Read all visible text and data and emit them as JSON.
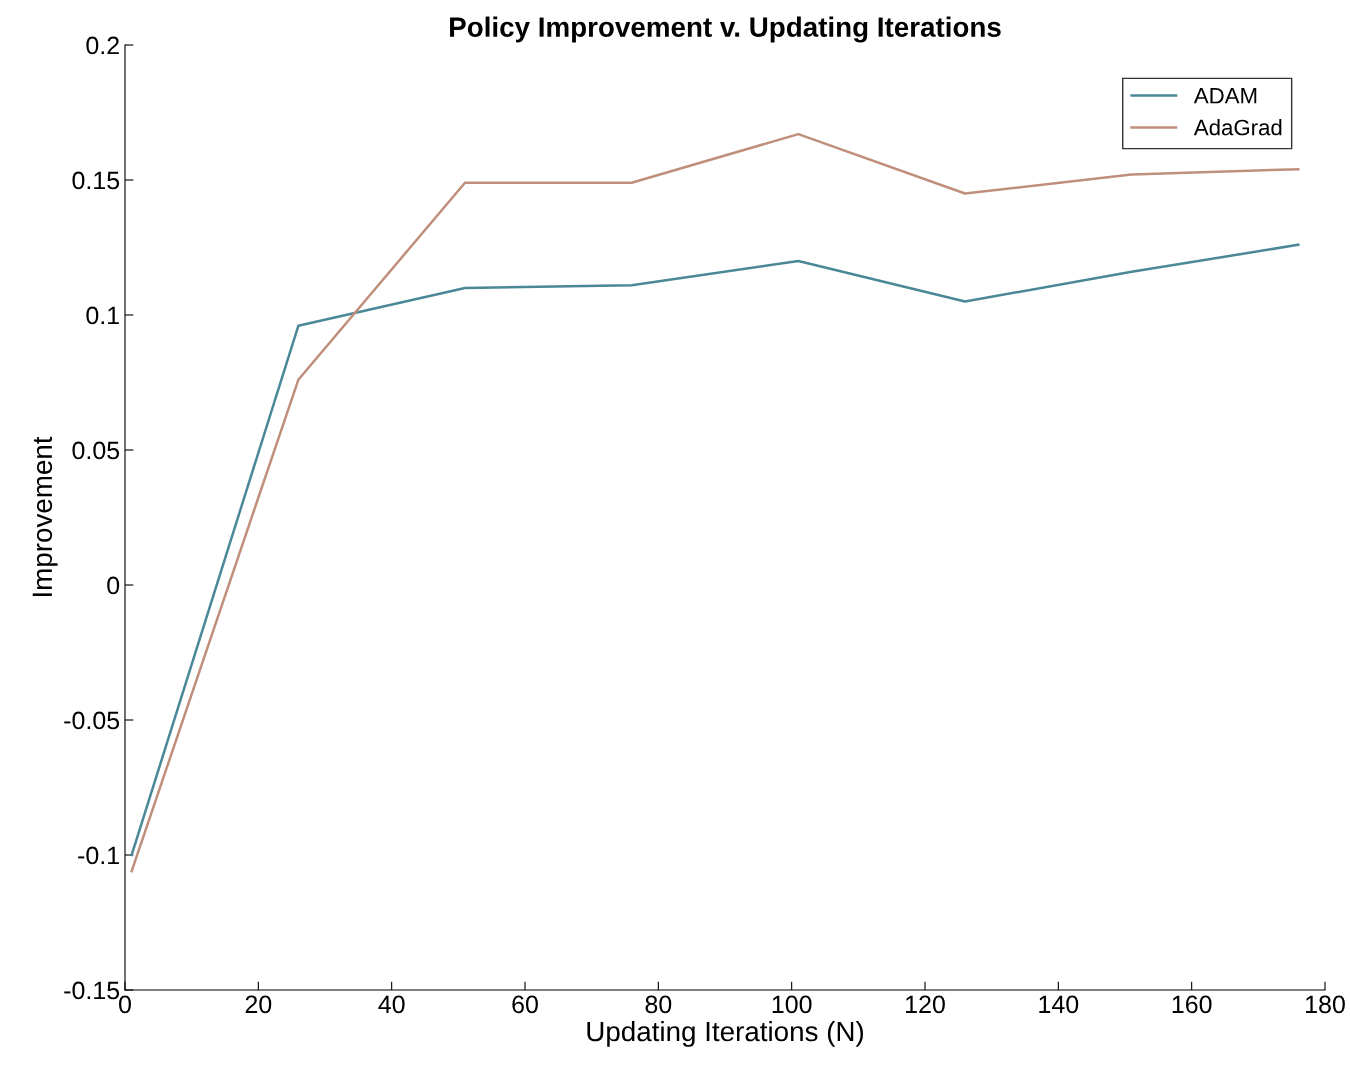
{
  "chart_data": {
    "type": "line",
    "title": "Policy Improvement v. Updating Iterations",
    "xlabel": "Updating Iterations (N)",
    "ylabel": "Improvement",
    "x": [
      1,
      26,
      51,
      76,
      101,
      126,
      151,
      176
    ],
    "series": [
      {
        "name": "ADAM",
        "color": "#4a8797",
        "values": [
          -0.1,
          0.096,
          0.11,
          0.111,
          0.12,
          0.105,
          0.116,
          0.126
        ]
      },
      {
        "name": "AdaGrad",
        "color": "#bf8f7c",
        "values": [
          -0.106,
          0.076,
          0.149,
          0.149,
          0.167,
          0.145,
          0.152,
          0.154
        ]
      }
    ],
    "xlim": [
      0,
      180
    ],
    "xticks": [
      0,
      20,
      40,
      60,
      80,
      100,
      120,
      140,
      160,
      180
    ],
    "ylim": [
      -0.15,
      0.2
    ],
    "yticks": [
      {
        "value": -0.15,
        "label": "-0.15"
      },
      {
        "value": -0.1,
        "label": "-0.1"
      },
      {
        "value": -0.05,
        "label": "-0.05"
      },
      0,
      0.05,
      0.1,
      0.15,
      0.2
    ],
    "grid": false,
    "legend": "top right",
    "marker": "none",
    "line_style": "solid"
  }
}
